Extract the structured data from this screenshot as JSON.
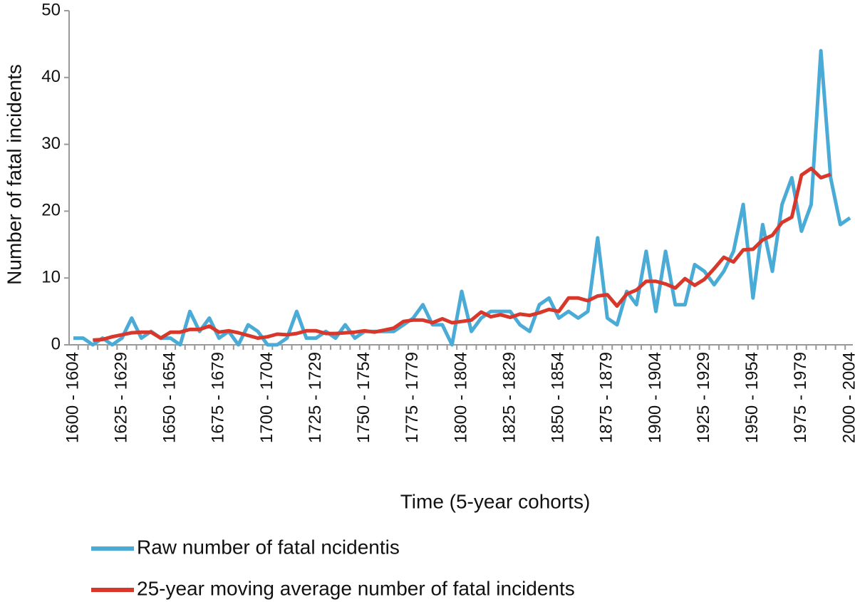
{
  "chart_data": {
    "type": "line",
    "x_label": "Time (5-year cohorts)",
    "y_label": "Number of fatal incidents",
    "categories": [
      "1600 - 1604",
      null,
      null,
      null,
      null,
      "1625 - 1629",
      null,
      null,
      null,
      null,
      "1650 - 1654",
      null,
      null,
      null,
      null,
      "1675 - 1679",
      null,
      null,
      null,
      null,
      "1700 - 1704",
      null,
      null,
      null,
      null,
      "1725 - 1729",
      null,
      null,
      null,
      null,
      "1750 - 1754",
      null,
      null,
      null,
      null,
      "1775 - 1779",
      null,
      null,
      null,
      null,
      "1800 - 1804",
      null,
      null,
      null,
      null,
      "1825 - 1829",
      null,
      null,
      null,
      null,
      "1850 - 1854",
      null,
      null,
      null,
      null,
      "1875 - 1879",
      null,
      null,
      null,
      null,
      "1900 - 1904",
      null,
      null,
      null,
      null,
      "1925 - 1929",
      null,
      null,
      null,
      null,
      "1950 - 1954",
      null,
      null,
      null,
      null,
      "1975 - 1979",
      null,
      null,
      null,
      null,
      "2000 - 2004"
    ],
    "series": [
      {
        "name": "Raw number of fatal ncidentis",
        "color": "#4aabd6",
        "values": [
          1,
          1,
          0,
          1,
          0,
          1,
          4,
          1,
          2,
          1,
          1,
          0,
          5,
          2,
          4,
          1,
          2,
          0,
          3,
          2,
          0,
          0,
          1,
          5,
          1,
          1,
          2,
          1,
          3,
          1,
          2,
          2,
          2,
          2,
          3,
          4,
          6,
          3,
          3,
          0,
          8,
          2,
          4,
          5,
          5,
          5,
          3,
          2,
          6,
          7,
          4,
          5,
          4,
          5,
          16,
          4,
          3,
          8,
          6,
          14,
          5,
          14,
          6,
          6,
          12,
          11,
          9,
          11,
          14,
          21,
          7,
          18,
          11,
          21,
          25,
          17,
          21,
          44,
          25,
          18,
          19
        ]
      },
      {
        "name": "25-year moving average number of fatal incidents",
        "color": "#d8382b",
        "values": [
          null,
          null,
          0.7,
          0.8,
          1.2,
          1.5,
          1.8,
          1.9,
          1.9,
          1.0,
          1.9,
          1.9,
          2.3,
          2.3,
          2.8,
          1.9,
          2.1,
          1.8,
          1.4,
          1.0,
          1.2,
          1.6,
          1.5,
          1.7,
          2.1,
          2.1,
          1.7,
          1.7,
          1.8,
          1.9,
          2.1,
          1.9,
          2.2,
          2.5,
          3.5,
          3.7,
          3.7,
          3.3,
          3.9,
          3.3,
          3.5,
          3.7,
          4.9,
          4.2,
          4.5,
          4.1,
          4.6,
          4.4,
          4.8,
          5.3,
          5.0,
          7.0,
          7.0,
          6.6,
          7.3,
          7.5,
          5.8,
          7.6,
          8.2,
          9.5,
          9.5,
          9.1,
          8.5,
          9.9,
          8.9,
          9.8,
          11.4,
          13.1,
          12.4,
          14.2,
          14.3,
          15.7,
          16.4,
          18.3,
          19.1,
          25.4,
          26.4,
          25.0,
          25.5,
          null,
          null
        ]
      }
    ],
    "ylim": [
      0,
      50
    ],
    "yticks": [
      0,
      10,
      20,
      30,
      40,
      50
    ],
    "legend": "bottom"
  }
}
